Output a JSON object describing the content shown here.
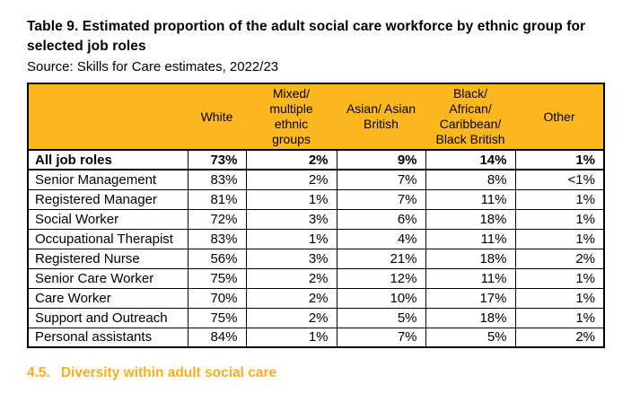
{
  "doc": {
    "title": "Table 9. Estimated proportion of the adult social care workforce by ethnic group for\nselected job roles",
    "source": "Source: Skills for Care estimates, 2022/23",
    "section_heading": {
      "number": "4.5.",
      "text": "Diversity within adult social care"
    }
  },
  "colors": {
    "table_header_bg": "#FDB71E",
    "section_heading_text": "#FBAE1C",
    "table_border": "#000000"
  },
  "table": {
    "columns": [
      "",
      "White",
      "Mixed/\nmultiple\nethnic\ngroups",
      "Asian/ Asian\nBritish",
      "Black/\nAfrican/\nCaribbean/\nBlack British",
      "Other"
    ],
    "rows": [
      {
        "role": "All job roles",
        "values": [
          "73%",
          "2%",
          "9%",
          "14%",
          "1%"
        ],
        "bold": true
      },
      {
        "role": "Senior Management",
        "values": [
          "83%",
          "2%",
          "7%",
          "8%",
          "<1%"
        ],
        "bold": false
      },
      {
        "role": "Registered Manager",
        "values": [
          "81%",
          "1%",
          "7%",
          "11%",
          "1%"
        ],
        "bold": false
      },
      {
        "role": "Social Worker",
        "values": [
          "72%",
          "3%",
          "6%",
          "18%",
          "1%"
        ],
        "bold": false
      },
      {
        "role": "Occupational Therapist",
        "values": [
          "83%",
          "1%",
          "4%",
          "11%",
          "1%"
        ],
        "bold": false
      },
      {
        "role": "Registered Nurse",
        "values": [
          "56%",
          "3%",
          "21%",
          "18%",
          "2%"
        ],
        "bold": false
      },
      {
        "role": "Senior Care Worker",
        "values": [
          "75%",
          "2%",
          "12%",
          "11%",
          "1%"
        ],
        "bold": false
      },
      {
        "role": "Care Worker",
        "values": [
          "70%",
          "2%",
          "10%",
          "17%",
          "1%"
        ],
        "bold": false
      },
      {
        "role": "Support and Outreach",
        "values": [
          "75%",
          "2%",
          "5%",
          "18%",
          "1%"
        ],
        "bold": false
      },
      {
        "role": "Personal assistants",
        "values": [
          "84%",
          "1%",
          "7%",
          "5%",
          "2%"
        ],
        "bold": false
      }
    ]
  }
}
